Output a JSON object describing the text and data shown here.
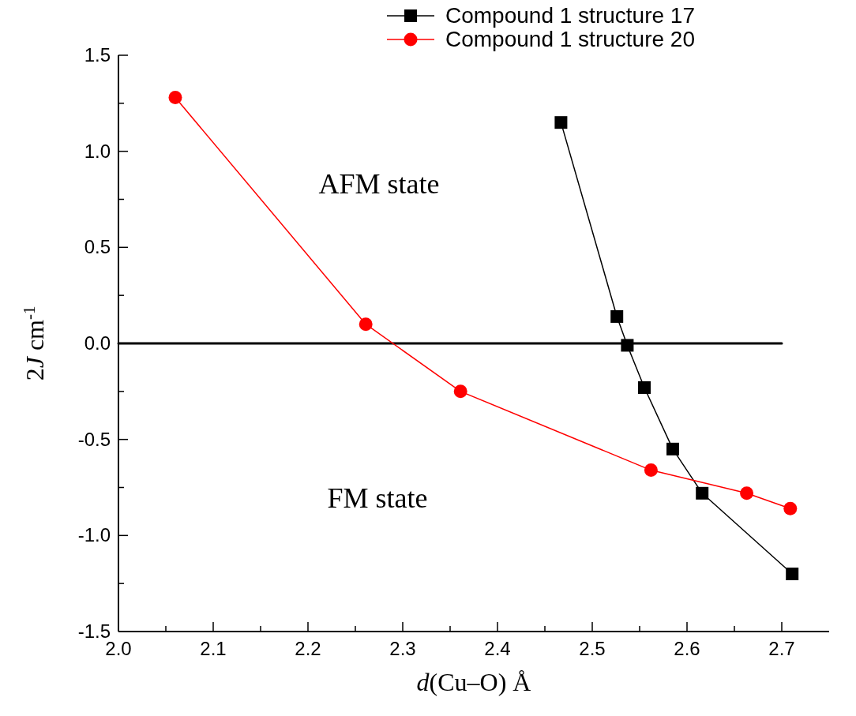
{
  "chart_data": {
    "type": "line",
    "xlabel": "d(Cu–O) Å",
    "ylabel": "2J cm$^{-1}$",
    "annotations": [
      "AFM state",
      "FM state"
    ],
    "xlim": [
      2.0,
      2.75
    ],
    "ylim": [
      -1.5,
      1.5
    ],
    "xticks": [
      {
        "value": 2.0,
        "label": "2.0"
      },
      {
        "value": 2.05,
        "label": null
      },
      2.1,
      {
        "value": 2.15,
        "label": null
      },
      2.2,
      {
        "value": 2.25,
        "label": null
      },
      2.3,
      {
        "value": 2.35,
        "label": null
      },
      2.4,
      {
        "value": 2.45,
        "label": null
      },
      2.5,
      {
        "value": 2.55,
        "label": null
      },
      2.6,
      {
        "value": 2.65,
        "label": null
      },
      2.7
    ],
    "yticks": [
      -1.5,
      {
        "value": -1.25,
        "label": null
      },
      {
        "value": -1.0,
        "label": "-1.0"
      },
      {
        "value": -0.75,
        "label": null
      },
      -0.5,
      {
        "value": -0.25,
        "label": null
      },
      {
        "value": 0.0,
        "label": "0.0"
      },
      {
        "value": 0.25,
        "label": null
      },
      0.5,
      {
        "value": 0.75,
        "label": null
      },
      {
        "value": 1.0,
        "label": "1.0"
      },
      {
        "value": 1.25,
        "label": null
      },
      1.5
    ],
    "legend": "top right",
    "grid": false,
    "series": [
      {
        "x": [
          2.0,
          2.7
        ],
        "values": [
          0,
          0
        ],
        "color": "#000000",
        "marker": "none"
      },
      {
        "name": "Compound 1 structure 17",
        "color": "#000000",
        "marker": "square",
        "x": [
          2.467,
          2.526,
          2.537,
          2.555,
          2.585,
          2.616,
          2.711
        ],
        "values": [
          1.15,
          0.14,
          -0.01,
          -0.23,
          -0.55,
          -0.78,
          -1.2
        ]
      },
      {
        "name": "Compound 1 structure 20",
        "color": "#ff0000",
        "marker": "circle",
        "x": [
          2.06,
          2.261,
          2.361,
          2.562,
          2.663,
          2.709
        ],
        "values": [
          1.28,
          0.1,
          -0.25,
          -0.66,
          -0.78,
          -0.86
        ]
      }
    ]
  }
}
